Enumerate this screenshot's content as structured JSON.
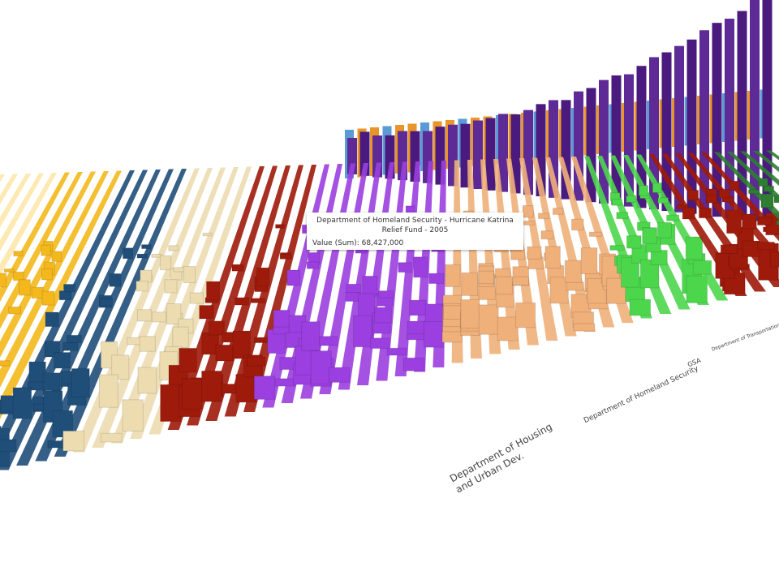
{
  "tooltip": {
    "title": "Department of Homeland Security - Hurricane Katrina Relief Fund - 2005",
    "value": "Value (Sum): 68,427,000"
  },
  "axis_labels": [
    "Department of Housing and Urban Dev.",
    "Department of Homeland Security",
    "GSA",
    "Department of Transportation"
  ]
}
